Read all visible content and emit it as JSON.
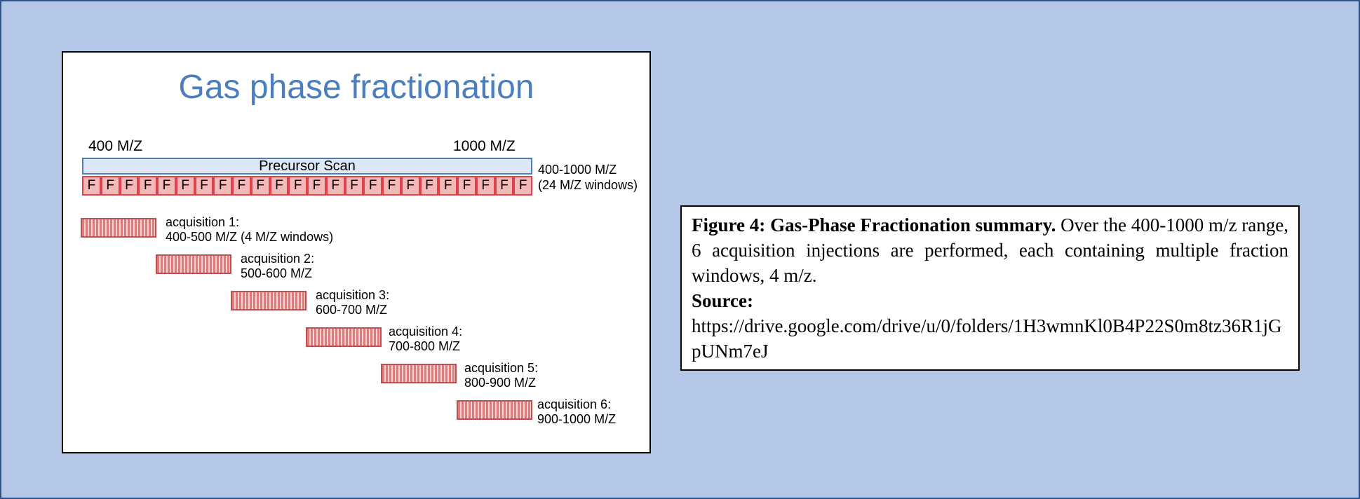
{
  "slide": {
    "title": "Gas phase fractionation",
    "range_start": "400 M/Z",
    "range_end": "1000 M/Z",
    "precursor_label": "Precursor Scan",
    "precursor_range": "400-1000 M/Z",
    "precursor_windows": "(24 M/Z windows)",
    "fraction_letter": "F",
    "fraction_count": 24,
    "acquisitions": [
      {
        "name": "acquisition 1:",
        "range": "400-500 M/Z (4 M/Z windows)"
      },
      {
        "name": "acquisition 2:",
        "range": "500-600 M/Z"
      },
      {
        "name": "acquisition 3:",
        "range": "600-700 M/Z"
      },
      {
        "name": "acquisition 4:",
        "range": "700-800 M/Z"
      },
      {
        "name": "acquisition 5:",
        "range": "800-900 M/Z"
      },
      {
        "name": "acquisition 6:",
        "range": "900-1000 M/Z"
      }
    ]
  },
  "caption": {
    "heading": "Figure 4: Gas-Phase Fractionation summary.",
    "body": " Over the 400-1000 m/z range, 6 acquisition injections are performed, each containing multiple fraction windows, 4 m/z.",
    "source_label": "Source:",
    "source_url": "https://drive.google.com/drive/u/0/folders/1H3wmnKl0B4P22S0m8tz36R1jGpUNm7eJ"
  },
  "colors": {
    "background": "#b4c7e7",
    "title": "#4a7ebd",
    "fraction_fill": "#f4b8b8",
    "fraction_border": "#e0404a",
    "acquisition_border": "#c0504d"
  }
}
